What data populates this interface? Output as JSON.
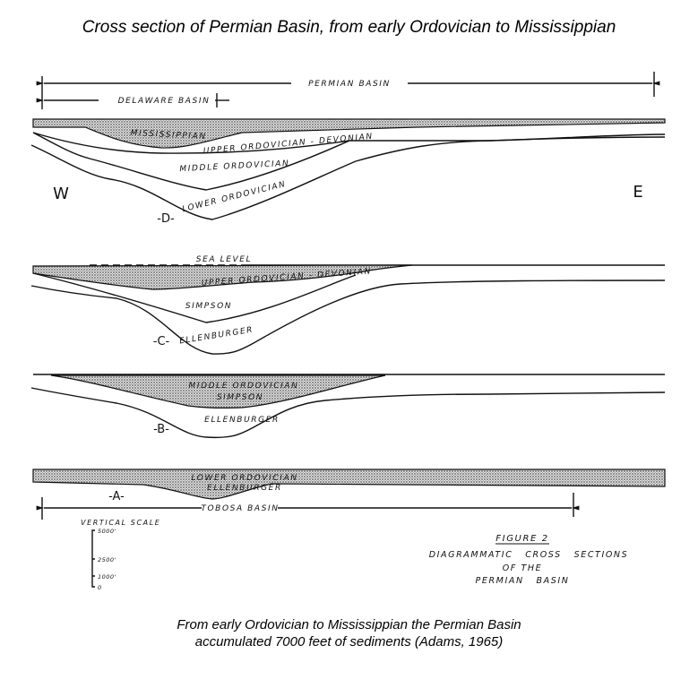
{
  "title": "Cross section of Permian Basin, from early Ordovician to Mississippian",
  "caption": {
    "line1": "From early Ordovician to Mississippian the Permian Basin",
    "line2": "accumulated 7000 feet of sediments (Adams, 1965)"
  },
  "diagram": {
    "extents": {
      "permian_basin": "PERMIAN BASIN",
      "delaware_basin": "DELAWARE BASIN",
      "tobosa_basin": "TOBOSA BASIN"
    },
    "directions": {
      "west": "W",
      "east": "E"
    },
    "sections": {
      "D": {
        "label": "-D-",
        "units": [
          "MISSISSIPPIAN",
          "UPPER ORDOVICIAN - DEVONIAN",
          "MIDDLE ORDOVICIAN",
          "LOWER ORDOVICIAN"
        ]
      },
      "C": {
        "label": "-C-",
        "sea_level": "SEA LEVEL",
        "units": [
          "UPPER ORDOVICIAN - DEVONIAN",
          "SIMPSON",
          "ELLENBURGER"
        ]
      },
      "B": {
        "label": "-B-",
        "units": [
          "MIDDLE ORDOVICIAN",
          "SIMPSON",
          "ELLENBURGER"
        ]
      },
      "A": {
        "label": "-A-",
        "units": [
          "LOWER ORDOVICIAN",
          "ELLENBURGER"
        ]
      }
    },
    "vertical_scale": {
      "title": "VERTICAL SCALE",
      "ticks": [
        "5000'",
        "2500'",
        "1000'",
        "0"
      ]
    },
    "figure": {
      "number": "FIGURE 2",
      "line1": "DIAGRAMMATIC   CROSS   SECTIONS",
      "line2": "OF THE",
      "line3": "PERMIAN   BASIN"
    },
    "colors": {
      "ink": "#111111",
      "stipple_fill": "#c8c8c8"
    }
  }
}
